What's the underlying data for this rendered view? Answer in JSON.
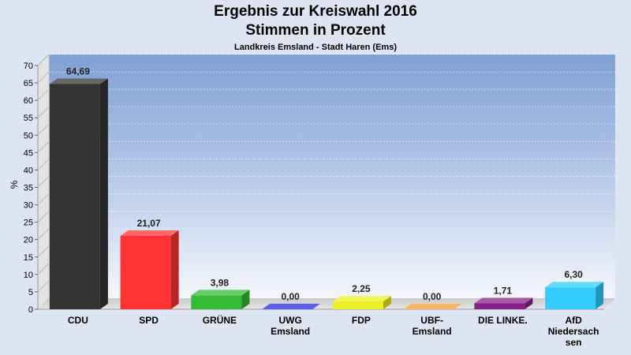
{
  "chart_data": {
    "type": "bar",
    "title": "Ergebnis zur Kreiswahl 2016",
    "subtitle": "Stimmen in Prozent",
    "subsubtitle": "Landkreis Emsland - Stadt Haren (Ems)",
    "ylabel": "%",
    "ylim": [
      0,
      70
    ],
    "yticks": [
      "0",
      "5",
      "10",
      "15",
      "20",
      "25",
      "30",
      "35",
      "40",
      "45",
      "50",
      "55",
      "60",
      "65",
      "70"
    ],
    "categories": [
      [
        "CDU"
      ],
      [
        "SPD"
      ],
      [
        "GRÜNE"
      ],
      [
        "UWG",
        "Emsland"
      ],
      [
        "FDP"
      ],
      [
        "UBF-",
        "Emsland"
      ],
      [
        "DIE LINKE."
      ],
      [
        "AfD",
        "Niedersach",
        "sen"
      ]
    ],
    "values": [
      64.69,
      21.07,
      3.98,
      0.0,
      2.25,
      0.0,
      1.71,
      6.3
    ],
    "value_labels": [
      "64,69",
      "21,07",
      "3,98",
      "0,00",
      "2,25",
      "0,00",
      "1,71",
      "6,30"
    ],
    "colors": [
      "#333333",
      "#ff3333",
      "#33bb33",
      "#2a2ae8",
      "#eeee22",
      "#ff9933",
      "#882288",
      "#33ccff"
    ],
    "grid": true
  }
}
